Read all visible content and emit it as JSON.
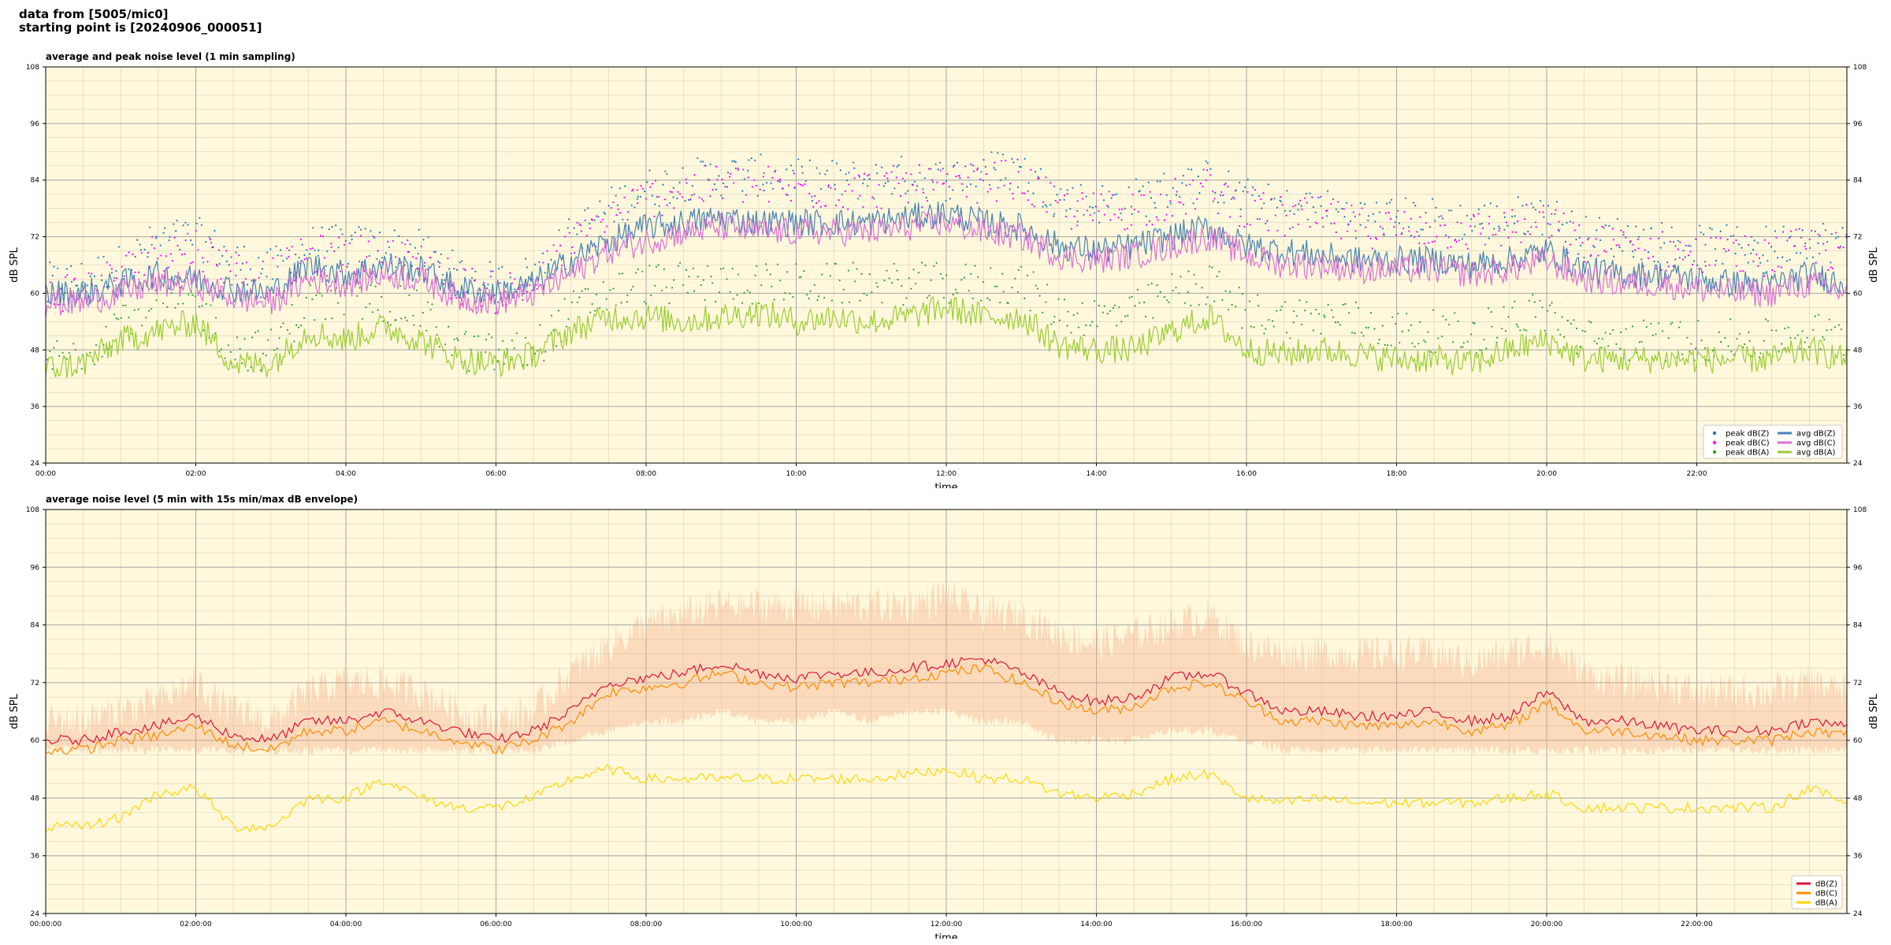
{
  "header": {
    "line1": "data from [5005/mic0]",
    "line2": "starting point is [20240906_000051]"
  },
  "chart_data": [
    {
      "type": "line",
      "title": "average and peak noise level (1 min sampling)",
      "xlabel": "time",
      "ylabel": "dB SPL",
      "x_range_hours": [
        0,
        24
      ],
      "ylim": [
        24,
        108
      ],
      "yticks": [
        "24",
        "36",
        "48",
        "60",
        "72",
        "84",
        "96",
        "108"
      ],
      "xtick_labels": [
        "00:00",
        "02:00",
        "04:00",
        "06:00",
        "08:00",
        "10:00",
        "12:00",
        "14:00",
        "16:00",
        "18:00",
        "20:00",
        "22:00"
      ],
      "grid": true,
      "legend_position": "lower-right",
      "background": "#fff8dc",
      "x_hours": [
        0,
        0.5,
        1,
        1.5,
        2,
        2.5,
        3,
        3.5,
        4,
        4.5,
        5,
        5.5,
        6,
        6.5,
        7,
        7.5,
        8,
        8.5,
        9,
        9.5,
        10,
        10.5,
        11,
        11.5,
        12,
        12.5,
        13,
        13.5,
        14,
        14.5,
        15,
        15.5,
        16,
        16.5,
        17,
        17.5,
        18,
        18.5,
        19,
        19.5,
        20,
        20.5,
        21,
        21.5,
        22,
        22.5,
        23,
        23.5,
        24
      ],
      "series": [
        {
          "name": "peak dB(Z)",
          "style": "points",
          "color": "#1f77b4",
          "values": [
            62,
            63,
            66,
            71,
            72,
            67,
            65,
            70,
            70,
            70,
            69,
            64,
            62,
            64,
            72,
            78,
            82,
            84,
            85,
            85,
            84,
            84,
            84,
            85,
            84,
            86,
            86,
            80,
            79,
            80,
            82,
            84,
            80,
            78,
            78,
            76,
            76,
            76,
            75,
            76,
            77,
            72,
            72,
            71,
            70,
            70,
            70,
            72,
            70
          ]
        },
        {
          "name": "peak dB(C)",
          "style": "points",
          "color": "#ff00ff",
          "values": [
            60,
            61,
            64,
            69,
            70,
            65,
            63,
            68,
            68,
            68,
            67,
            62,
            60,
            62,
            70,
            76,
            80,
            82,
            83,
            83,
            82,
            82,
            82,
            83,
            82,
            84,
            84,
            78,
            77,
            78,
            80,
            82,
            78,
            76,
            76,
            74,
            74,
            74,
            73,
            74,
            75,
            70,
            70,
            69,
            68,
            68,
            68,
            70,
            68
          ]
        },
        {
          "name": "peak dB(A)",
          "style": "points",
          "color": "#2ca02c",
          "values": [
            46,
            47,
            55,
            58,
            58,
            48,
            48,
            58,
            58,
            58,
            56,
            48,
            47,
            48,
            56,
            60,
            62,
            62,
            62,
            62,
            62,
            62,
            62,
            62,
            62,
            62,
            62,
            56,
            55,
            56,
            60,
            62,
            56,
            55,
            55,
            54,
            52,
            52,
            51,
            55,
            56,
            50,
            50,
            50,
            50,
            50,
            50,
            52,
            50
          ]
        },
        {
          "name": "avg dB(Z)",
          "style": "line",
          "color": "#4682b4",
          "values": [
            60,
            60,
            62,
            64,
            63,
            61,
            60,
            66,
            64,
            66,
            65,
            61,
            60,
            62,
            67,
            71,
            74,
            75,
            76,
            75,
            75,
            75,
            75,
            76,
            77,
            75,
            74,
            70,
            69,
            70,
            72,
            74,
            70,
            69,
            68,
            67,
            67,
            67,
            66,
            67,
            69,
            65,
            64,
            64,
            63,
            62,
            62,
            64,
            62
          ]
        },
        {
          "name": "avg dB(C)",
          "style": "line",
          "color": "#da70d6",
          "values": [
            58,
            58,
            60,
            62,
            62,
            59,
            58,
            63,
            62,
            64,
            63,
            59,
            58,
            60,
            64,
            69,
            71,
            73,
            74,
            73,
            73,
            73,
            73,
            74,
            75,
            73,
            72,
            68,
            67,
            68,
            70,
            72,
            68,
            66,
            66,
            65,
            65,
            65,
            64,
            65,
            67,
            63,
            62,
            62,
            61,
            60,
            60,
            62,
            60
          ]
        },
        {
          "name": "avg dB(A)",
          "style": "line",
          "color": "#9acd32",
          "values": [
            44,
            45,
            50,
            52,
            54,
            45,
            45,
            52,
            50,
            53,
            50,
            46,
            45,
            47,
            52,
            55,
            55,
            54,
            55,
            56,
            54,
            55,
            54,
            55,
            57,
            55,
            55,
            49,
            48,
            48,
            52,
            55,
            48,
            47,
            48,
            47,
            46,
            46,
            45,
            48,
            50,
            46,
            46,
            46,
            46,
            46,
            46,
            48,
            46
          ]
        }
      ]
    },
    {
      "type": "line",
      "title": "average noise level (5 min with 15s min/max dB envelope)",
      "xlabel": "time",
      "ylabel": "dB SPL",
      "x_range_hours": [
        0,
        24
      ],
      "ylim": [
        24,
        108
      ],
      "yticks": [
        "24",
        "36",
        "48",
        "60",
        "72",
        "84",
        "96",
        "108"
      ],
      "xtick_labels": [
        "00:00:00",
        "02:00:00",
        "04:00:00",
        "06:00:00",
        "08:00:00",
        "10:00:00",
        "12:00:00",
        "14:00:00",
        "16:00:00",
        "18:00:00",
        "20:00:00",
        "22:00:00"
      ],
      "grid": true,
      "legend_position": "lower-right",
      "background": "#fff8dc",
      "envelope": {
        "color": "#f4a582",
        "x_hours": [
          0,
          0.5,
          1,
          1.5,
          2,
          2.5,
          3,
          3.5,
          4,
          4.5,
          5,
          5.5,
          6,
          6.5,
          7,
          7.5,
          8,
          8.5,
          9,
          9.5,
          10,
          10.5,
          11,
          11.5,
          12,
          12.5,
          13,
          13.5,
          14,
          14.5,
          15,
          15.5,
          16,
          16.5,
          17,
          17.5,
          18,
          18.5,
          19,
          19.5,
          20,
          20.5,
          21,
          21.5,
          22,
          22.5,
          23,
          23.5,
          24
        ],
        "upper": [
          64,
          64,
          66,
          68,
          72,
          66,
          64,
          70,
          72,
          72,
          70,
          66,
          64,
          66,
          74,
          80,
          84,
          86,
          88,
          88,
          88,
          88,
          88,
          88,
          90,
          86,
          86,
          82,
          80,
          82,
          84,
          86,
          80,
          78,
          78,
          78,
          78,
          78,
          76,
          78,
          80,
          74,
          72,
          72,
          70,
          70,
          70,
          72,
          70
        ],
        "lower": [
          58,
          58,
          58,
          58,
          58,
          58,
          58,
          58,
          58,
          58,
          58,
          58,
          58,
          58,
          60,
          62,
          64,
          64,
          66,
          64,
          64,
          66,
          64,
          66,
          66,
          64,
          64,
          60,
          60,
          60,
          62,
          62,
          60,
          58,
          58,
          58,
          58,
          58,
          58,
          58,
          58,
          58,
          58,
          58,
          58,
          58,
          58,
          58,
          58
        ]
      },
      "x_hours": [
        0,
        0.5,
        1,
        1.5,
        2,
        2.5,
        3,
        3.5,
        4,
        4.5,
        5,
        5.5,
        6,
        6.5,
        7,
        7.5,
        8,
        8.5,
        9,
        9.5,
        10,
        10.5,
        11,
        11.5,
        12,
        12.5,
        13,
        13.5,
        14,
        14.5,
        15,
        15.5,
        16,
        16.5,
        17,
        17.5,
        18,
        18.5,
        19,
        19.5,
        20,
        20.5,
        21,
        21.5,
        22,
        22.5,
        23,
        23.5,
        24
      ],
      "series": [
        {
          "name": "dB(Z)",
          "style": "line",
          "color": "#dc143c",
          "values": [
            60,
            60,
            62,
            63,
            65,
            61,
            60,
            64,
            64,
            66,
            64,
            62,
            60,
            62,
            66,
            72,
            73,
            74,
            76,
            74,
            73,
            74,
            74,
            75,
            76,
            77,
            74,
            70,
            68,
            69,
            73,
            74,
            70,
            66,
            66,
            65,
            65,
            66,
            64,
            65,
            70,
            64,
            64,
            63,
            62,
            62,
            62,
            64,
            63
          ]
        },
        {
          "name": "dB(C)",
          "style": "line",
          "color": "#ff8c00",
          "values": [
            58,
            58,
            60,
            61,
            63,
            59,
            58,
            62,
            62,
            64,
            62,
            60,
            58,
            60,
            64,
            70,
            71,
            72,
            74,
            72,
            71,
            72,
            72,
            73,
            74,
            75,
            72,
            68,
            66,
            67,
            71,
            72,
            68,
            64,
            64,
            63,
            63,
            64,
            62,
            63,
            68,
            62,
            62,
            61,
            60,
            60,
            60,
            62,
            61
          ]
        },
        {
          "name": "dB(A)",
          "style": "line",
          "color": "#ffd700",
          "values": [
            42,
            42,
            44,
            49,
            50,
            42,
            42,
            48,
            48,
            52,
            48,
            46,
            46,
            48,
            52,
            54,
            52,
            52,
            52,
            52,
            52,
            52,
            52,
            53,
            54,
            52,
            52,
            49,
            48,
            49,
            52,
            53,
            48,
            47,
            48,
            47,
            47,
            47,
            47,
            48,
            49,
            46,
            46,
            46,
            46,
            46,
            46,
            50,
            47
          ]
        }
      ]
    }
  ]
}
